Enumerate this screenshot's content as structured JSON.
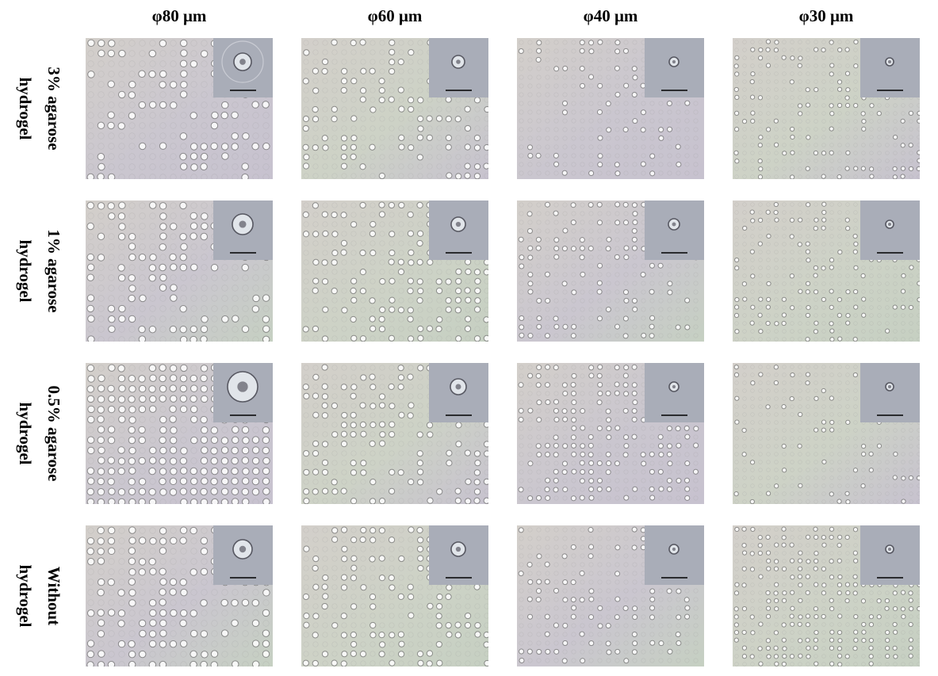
{
  "columns": [
    "φ80 μm",
    "φ60 μm",
    "φ40 μm",
    "φ30 μm"
  ],
  "rows": [
    {
      "line1": "3% agarose",
      "line2": "hydrogel"
    },
    {
      "line1": "1% agarose",
      "line2": "hydrogel"
    },
    {
      "line1": "0.5% agarose",
      "line2": "hydrogel"
    },
    {
      "line1": "Without",
      "line2": "hydrogel"
    }
  ],
  "colors": {
    "background": "#ffffff",
    "panel_base": "#cfcbc6",
    "panel_tint_green": "#c8d3c3",
    "panel_tint_purple": "#c4bfcf",
    "inset_base": "#a9adb8",
    "scale_bar": "#000000"
  }
}
